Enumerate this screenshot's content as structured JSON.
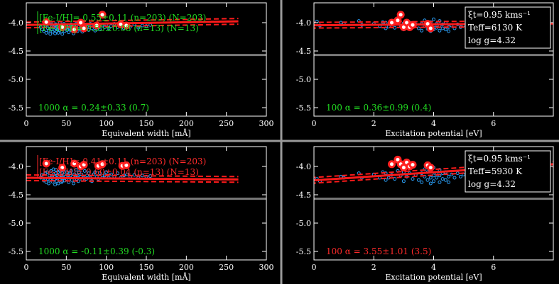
{
  "colors": {
    "background": "#000000",
    "separator": "#9a9a9a",
    "axis": "#ffffff",
    "points_fe1": "#2a9df4",
    "points_fe2": "#ff2020",
    "fit_line": "#ff1a1a",
    "reference_line": "#7a7a7a",
    "green_text": "#22dd22",
    "red_text": "#ff2a2a"
  },
  "chart_data": [
    {
      "type": "scatter",
      "panel": "top-left",
      "title": "",
      "xlabel": "Equivalent width [mÅ]",
      "ylabel": "",
      "xlim": [
        0,
        300
      ],
      "ylim": [
        -5.65,
        -3.65
      ],
      "xticks": [
        "0",
        "50",
        "100",
        "150",
        "200",
        "250",
        "300"
      ],
      "xtick_values": [
        0,
        50,
        100,
        150,
        200,
        250,
        300
      ],
      "yticks": [
        "-4.0",
        "-4.5",
        "-5.0",
        "-5.5"
      ],
      "ytick_values": [
        -4.0,
        -4.5,
        -5.0,
        -5.5
      ],
      "fit": {
        "intercept": -4.04,
        "slope_per_unit": 0.00024,
        "xrange": [
          0,
          265
        ],
        "band": 0.05
      },
      "reference_y": -4.57,
      "series": [
        {
          "name": "Fe I",
          "x": [
            18,
            20,
            22,
            24,
            25,
            26,
            27,
            28,
            29,
            30,
            31,
            32,
            33,
            34,
            34,
            35,
            36,
            36,
            37,
            37,
            38,
            38,
            39,
            40,
            40,
            41,
            42,
            42,
            43,
            44,
            44,
            45,
            45,
            46,
            47,
            47,
            48,
            49,
            50,
            51,
            52,
            53,
            54,
            55,
            56,
            57,
            58,
            59,
            60,
            61,
            62,
            63,
            64,
            65,
            66,
            68,
            69,
            70,
            72,
            73,
            75,
            76,
            78,
            80,
            82,
            84,
            86,
            88,
            90,
            92,
            95,
            98,
            100,
            103,
            106,
            110,
            114,
            118,
            122,
            126,
            130,
            135,
            140,
            145,
            150,
            155
          ],
          "y": [
            -4.08,
            -4.12,
            -4.15,
            -4.05,
            -4.18,
            -4.02,
            -4.1,
            -4.14,
            -4.06,
            -4.2,
            -4.03,
            -4.11,
            -4.16,
            -4.08,
            -4.0,
            -4.13,
            -4.05,
            -4.19,
            -4.1,
            -4.03,
            -4.15,
            -4.07,
            -4.12,
            -4.04,
            -4.18,
            -4.09,
            -4.13,
            -4.01,
            -4.07,
            -4.16,
            -4.1,
            -4.05,
            -4.2,
            -4.12,
            -4.08,
            -4.02,
            -4.15,
            -4.1,
            -4.06,
            -4.13,
            -4.04,
            -4.17,
            -4.09,
            -4.11,
            -4.03,
            -4.14,
            -4.08,
            -4.19,
            -4.06,
            -4.12,
            -4.02,
            -4.1,
            -4.15,
            -4.07,
            -4.0,
            -4.12,
            -4.05,
            -4.16,
            -4.09,
            -4.03,
            -4.11,
            -4.07,
            -4.13,
            -4.02,
            -4.1,
            -4.06,
            -4.14,
            -4.04,
            -4.09,
            -4.12,
            -4.05,
            -4.08,
            -4.03,
            -4.1,
            -4.06,
            -4.02,
            -4.08,
            -4.05,
            -4.1,
            -4.04,
            -4.07,
            -4.03,
            -4.09,
            -4.05,
            -4.06,
            -4.04
          ]
        },
        {
          "name": "Fe II",
          "x": [
            25,
            45,
            60,
            68,
            72,
            88,
            95,
            118,
            125
          ],
          "y": [
            -3.99,
            -4.08,
            -4.12,
            -4.0,
            -4.1,
            -4.05,
            -3.86,
            -4.03,
            -4.05
          ]
        }
      ],
      "annotations": [
        "[Fe-I/H]= 0.55±0.11 (n=203) (N=203)",
        "[Fe-II/H]= 0.55±0.08 (n=13) (N=13)"
      ],
      "slope_label": "1000 α = 0.24±0.33 (0.7)",
      "slope_color": "green"
    },
    {
      "type": "scatter",
      "panel": "top-right",
      "title": "",
      "xlabel": "Excitation potential [eV]",
      "ylabel": "",
      "xlim": [
        0,
        8
      ],
      "ylim": [
        -5.65,
        -3.65
      ],
      "xticks": [
        "0",
        "2",
        "4",
        "6"
      ],
      "xtick_values": [
        0,
        2,
        4,
        6
      ],
      "yticks": [
        "-4.0",
        "-4.5",
        "-5.0",
        "-5.5"
      ],
      "ytick_values": [
        -4.0,
        -4.5,
        -5.0,
        -5.5
      ],
      "fit": {
        "intercept": -4.045,
        "slope_per_unit": 0.0036,
        "xrange": [
          -0.1,
          8.5
        ],
        "band": 0.05
      },
      "reference_y": -4.57,
      "series": [
        {
          "name": "Fe I",
          "x": [
            0.1,
            0.2,
            0.9,
            1.0,
            1.5,
            1.6,
            2.0,
            2.2,
            2.3,
            2.4,
            2.4,
            2.5,
            2.6,
            2.7,
            2.8,
            2.9,
            3.0,
            3.0,
            3.1,
            3.2,
            3.3,
            3.4,
            3.5,
            3.6,
            3.6,
            3.7,
            3.7,
            3.8,
            3.8,
            3.9,
            3.9,
            3.9,
            4.0,
            4.0,
            4.0,
            4.1,
            4.1,
            4.2,
            4.2,
            4.2,
            4.3,
            4.3,
            4.4,
            4.4,
            4.5,
            4.5,
            4.6,
            4.7,
            4.8,
            4.9,
            5.0,
            5.1,
            5.3
          ],
          "y": [
            -3.98,
            -4.05,
            -4.0,
            -4.02,
            -3.97,
            -4.04,
            -4.02,
            -4.06,
            -3.99,
            -4.1,
            -4.0,
            -4.07,
            -4.03,
            -4.09,
            -3.97,
            -4.05,
            -4.12,
            -4.01,
            -4.06,
            -4.0,
            -4.08,
            -4.03,
            -4.1,
            -4.02,
            -4.14,
            -4.06,
            -3.96,
            -4.11,
            -4.01,
            -4.08,
            -4.15,
            -3.99,
            -4.05,
            -4.12,
            -3.94,
            -4.09,
            -4.02,
            -4.14,
            -4.06,
            -3.97,
            -4.1,
            -4.03,
            -4.12,
            -4.0,
            -4.08,
            -4.15,
            -4.05,
            -4.1,
            -4.03,
            -4.08,
            -4.05,
            -4.1,
            -4.04
          ]
        },
        {
          "name": "Fe II",
          "x": [
            2.6,
            2.8,
            2.9,
            3.0,
            3.1,
            3.2,
            3.3,
            3.8,
            3.9
          ],
          "y": [
            -4.0,
            -3.96,
            -3.86,
            -4.08,
            -4.0,
            -4.08,
            -4.04,
            -4.02,
            -4.1
          ]
        }
      ],
      "legend_box": [
        "ξt=0.95 kms⁻¹",
        "Teff=6130 K",
        "log g=4.32"
      ],
      "slope_label": "100 α = 0.36±0.99 (0.4)",
      "slope_color": "green"
    },
    {
      "type": "scatter",
      "panel": "bottom-left",
      "title": "",
      "xlabel": "Equivalent width [mÅ]",
      "ylabel": "",
      "xlim": [
        0,
        300
      ],
      "ylim": [
        -5.65,
        -3.65
      ],
      "xticks": [
        "0",
        "50",
        "100",
        "150",
        "200",
        "250",
        "300"
      ],
      "xtick_values": [
        0,
        50,
        100,
        150,
        200,
        250,
        300
      ],
      "yticks": [
        "-4.0",
        "-4.5",
        "-5.0",
        "-5.5"
      ],
      "ytick_values": [
        -4.0,
        -4.5,
        -5.0,
        -5.5
      ],
      "fit": {
        "intercept": -4.2,
        "slope_per_unit": -0.00011,
        "xrange": [
          0,
          265
        ],
        "band": 0.05
      },
      "reference_y": -4.57,
      "series": [
        {
          "name": "Fe I",
          "x": [
            18,
            20,
            22,
            24,
            25,
            26,
            27,
            28,
            29,
            30,
            31,
            32,
            33,
            34,
            34,
            35,
            36,
            36,
            37,
            37,
            38,
            38,
            39,
            40,
            40,
            41,
            42,
            42,
            43,
            44,
            44,
            45,
            45,
            46,
            47,
            47,
            48,
            49,
            50,
            51,
            52,
            53,
            54,
            55,
            56,
            57,
            58,
            59,
            60,
            61,
            62,
            63,
            64,
            65,
            66,
            68,
            69,
            70,
            72,
            73,
            75,
            76,
            78,
            80,
            82,
            84,
            86,
            88,
            90,
            92,
            95,
            98,
            100,
            103,
            106,
            110,
            114,
            118,
            122,
            126,
            130,
            135,
            140,
            145,
            150,
            155
          ],
          "y": [
            -4.2,
            -4.15,
            -4.25,
            -4.12,
            -4.28,
            -4.1,
            -4.22,
            -4.3,
            -4.16,
            -4.24,
            -4.08,
            -4.2,
            -4.27,
            -4.14,
            -4.05,
            -4.22,
            -4.18,
            -4.32,
            -4.12,
            -4.06,
            -4.26,
            -4.2,
            -4.15,
            -4.1,
            -4.3,
            -4.18,
            -4.24,
            -4.08,
            -4.2,
            -4.28,
            -4.16,
            -4.12,
            -4.26,
            -4.2,
            -4.14,
            -4.06,
            -4.25,
            -4.18,
            -4.22,
            -4.1,
            -4.16,
            -4.28,
            -4.2,
            -4.12,
            -4.08,
            -4.24,
            -4.18,
            -4.3,
            -4.14,
            -4.2,
            -4.06,
            -4.22,
            -4.16,
            -4.26,
            -4.1,
            -4.18,
            -4.14,
            -4.24,
            -4.2,
            -4.08,
            -4.22,
            -4.16,
            -4.12,
            -4.2,
            -4.26,
            -4.14,
            -4.1,
            -4.18,
            -4.22,
            -4.12,
            -4.2,
            -4.16,
            -4.1,
            -4.2,
            -4.14,
            -4.18,
            -4.12,
            -4.2,
            -4.16,
            -4.14,
            -4.18,
            -4.15,
            -4.2,
            -4.16,
            -4.18,
            -4.17
          ]
        },
        {
          "name": "Fe II",
          "x": [
            25,
            45,
            60,
            68,
            72,
            90,
            95,
            120,
            125
          ],
          "y": [
            -3.95,
            -4.02,
            -3.95,
            -4.0,
            -3.97,
            -3.99,
            -3.96,
            -3.99,
            -3.98
          ]
        }
      ],
      "annotations": [
        "[Fe-I/H]= 0.41±0.11 (n=203) (N=203)",
        "[Fe-II/H]= 0.60±0.04 (n=13) (N=13)"
      ],
      "slope_label": "1000 α = -0.11±0.39 (-0.3)",
      "slope_color": "green"
    },
    {
      "type": "scatter",
      "panel": "bottom-right",
      "title": "",
      "xlabel": "Excitation potential [eV]",
      "ylabel": "",
      "xlim": [
        0,
        8
      ],
      "ylim": [
        -5.65,
        -3.65
      ],
      "xticks": [
        "0",
        "2",
        "4",
        "6"
      ],
      "xtick_values": [
        0,
        2,
        4,
        6
      ],
      "yticks": [
        "-4.0",
        "-4.5",
        "-5.0",
        "-5.5"
      ],
      "ytick_values": [
        -4.0,
        -4.5,
        -5.0,
        -5.5
      ],
      "fit": {
        "intercept": -4.245,
        "slope_per_unit": 0.0355,
        "xrange": [
          -0.1,
          8.5
        ],
        "band": 0.05
      },
      "reference_y": -4.57,
      "series": [
        {
          "name": "Fe I",
          "x": [
            0.1,
            0.2,
            0.9,
            1.0,
            1.5,
            1.6,
            2.0,
            2.2,
            2.3,
            2.4,
            2.4,
            2.5,
            2.6,
            2.7,
            2.8,
            2.9,
            3.0,
            3.0,
            3.1,
            3.2,
            3.3,
            3.4,
            3.5,
            3.6,
            3.6,
            3.7,
            3.7,
            3.8,
            3.8,
            3.9,
            3.9,
            3.9,
            4.0,
            4.0,
            4.0,
            4.1,
            4.1,
            4.2,
            4.2,
            4.2,
            4.3,
            4.3,
            4.4,
            4.4,
            4.5,
            4.5,
            4.6,
            4.7,
            4.8,
            4.9,
            5.0,
            5.1,
            5.3
          ],
          "y": [
            -4.22,
            -4.26,
            -4.18,
            -4.2,
            -4.12,
            -4.2,
            -4.14,
            -4.2,
            -4.1,
            -4.24,
            -4.12,
            -4.2,
            -4.15,
            -4.22,
            -4.08,
            -4.16,
            -4.26,
            -4.1,
            -4.18,
            -4.12,
            -4.22,
            -4.15,
            -4.24,
            -4.12,
            -4.28,
            -4.18,
            -4.05,
            -4.24,
            -4.1,
            -4.2,
            -4.3,
            -4.08,
            -4.16,
            -4.26,
            -4.02,
            -4.2,
            -4.12,
            -4.28,
            -4.16,
            -4.06,
            -4.22,
            -4.12,
            -4.24,
            -4.1,
            -4.18,
            -4.28,
            -4.14,
            -4.2,
            -4.12,
            -4.18,
            -4.14,
            -4.18,
            -4.12
          ]
        },
        {
          "name": "Fe II",
          "x": [
            2.6,
            2.8,
            2.9,
            3.0,
            3.1,
            3.2,
            3.3,
            3.8,
            3.9
          ],
          "y": [
            -3.96,
            -3.88,
            -3.96,
            -4.02,
            -3.93,
            -4.0,
            -3.97,
            -3.98,
            -4.02
          ]
        }
      ],
      "legend_box": [
        "ξt=0.95 kms⁻¹",
        "Teff=5930 K",
        "log g=4.32"
      ],
      "slope_label": "100 α = 3.55±1.01 (3.5)",
      "slope_color": "red"
    }
  ]
}
